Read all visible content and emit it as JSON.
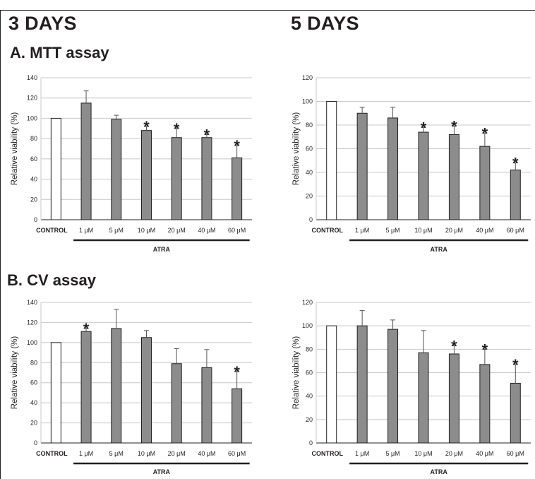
{
  "titles": {
    "left": "3 DAYS",
    "right": "5 DAYS"
  },
  "sections": {
    "a": "A. MTT assay",
    "b": "B. CV assay"
  },
  "colors": {
    "control_fill": "#ffffff",
    "bar_fill": "#8c8c8c",
    "stroke": "#231f20",
    "grid": "#c8c8c8"
  },
  "chart_data": [
    {
      "id": "mtt-3days",
      "type": "bar",
      "categories": [
        "CONTROL",
        "1 μM",
        "5 μM",
        "10 μM",
        "20 μM",
        "40 μM",
        "60 μM"
      ],
      "group_label": "ATRA",
      "ylabel": "Relative viability  (%)",
      "ylim": [
        0,
        140
      ],
      "yticks": [
        0,
        20,
        40,
        60,
        80,
        100,
        120,
        140
      ],
      "grid": true,
      "values": [
        100,
        115,
        99,
        88,
        81,
        81,
        61
      ],
      "errors": [
        0,
        12,
        4,
        4,
        9,
        3,
        12
      ],
      "significant": [
        false,
        false,
        false,
        true,
        true,
        true,
        true
      ],
      "sig_marker": "*"
    },
    {
      "id": "mtt-5days",
      "type": "bar",
      "categories": [
        "CONTROL",
        "1 μM",
        "5 μM",
        "10 μM",
        "20 μM",
        "40 μM",
        "60 μM"
      ],
      "group_label": "ATRA",
      "ylabel": "Relative viability  (%)",
      "ylim": [
        0,
        120
      ],
      "yticks": [
        0,
        20,
        40,
        60,
        80,
        100,
        120
      ],
      "grid": true,
      "values": [
        100,
        90,
        86,
        74,
        72,
        62,
        42
      ],
      "errors": [
        0,
        5,
        9,
        4,
        7,
        11,
        6
      ],
      "significant": [
        false,
        false,
        false,
        true,
        true,
        true,
        true
      ],
      "sig_marker": "*"
    },
    {
      "id": "cv-3days",
      "type": "bar",
      "categories": [
        "CONTROL",
        "1 μM",
        "5 μM",
        "10 μM",
        "20 μM",
        "40 μM",
        "60 μM"
      ],
      "group_label": "ATRA",
      "ylabel": "Relative viability  (%)",
      "ylim": [
        0,
        140
      ],
      "yticks": [
        0,
        20,
        40,
        60,
        80,
        100,
        120,
        140
      ],
      "grid": true,
      "values": [
        100,
        111,
        114,
        105,
        79,
        75,
        54
      ],
      "errors": [
        0,
        3,
        19,
        7,
        15,
        18,
        17
      ],
      "significant": [
        false,
        true,
        false,
        false,
        false,
        false,
        true
      ],
      "sig_marker": "*"
    },
    {
      "id": "cv-5days",
      "type": "bar",
      "categories": [
        "CONTROL",
        "1 μM",
        "5 μM",
        "10 μM",
        "20 μM",
        "40 μM",
        "60 μM"
      ],
      "group_label": "ATRA",
      "ylabel": "Relative viability  (%)",
      "ylim": [
        0,
        120
      ],
      "yticks": [
        0,
        20,
        40,
        60,
        80,
        100,
        120
      ],
      "grid": true,
      "values": [
        100,
        100,
        97,
        77,
        76,
        67,
        51
      ],
      "errors": [
        0,
        13,
        8,
        19,
        7,
        13,
        16
      ],
      "significant": [
        false,
        false,
        false,
        false,
        true,
        true,
        true
      ],
      "sig_marker": "*"
    }
  ]
}
